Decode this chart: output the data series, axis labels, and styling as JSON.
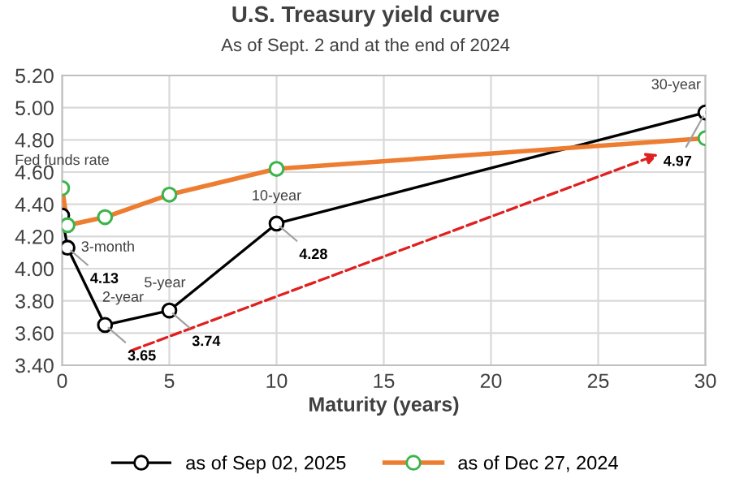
{
  "chart_data": {
    "type": "line",
    "title": "U.S. Treasury yield curve",
    "subtitle": "As of Sept. 2 and at the end of 2024",
    "xlabel": "Maturity (years)",
    "series": [
      {
        "name": "as of Sep 02, 2025",
        "color": "#000000",
        "x": [
          0,
          0.25,
          2,
          5,
          10,
          30
        ],
        "values": [
          4.33,
          4.13,
          3.65,
          3.74,
          4.28,
          4.97
        ],
        "value_labels": [
          null,
          "4.13",
          "3.65",
          "3.74",
          "4.28",
          "4.97"
        ]
      },
      {
        "name": "as of Dec 27, 2024",
        "color": "#ed7d31",
        "x": [
          0,
          0.25,
          2,
          5,
          10,
          30
        ],
        "values": [
          4.5,
          4.27,
          4.32,
          4.46,
          4.62,
          4.81
        ]
      }
    ],
    "annotations": [
      {
        "text": "Fed funds rate",
        "x": 0,
        "y": 4.5
      },
      {
        "text": "3-month",
        "x": 0.25,
        "y": 4.27
      },
      {
        "text": "2-year",
        "x": 2,
        "y": 3.65
      },
      {
        "text": "5-year",
        "x": 5,
        "y": 3.74
      },
      {
        "text": "10-year",
        "x": 10,
        "y": 4.28
      },
      {
        "text": "30-year",
        "x": 30,
        "y": 4.97
      }
    ],
    "xlim": [
      0,
      30
    ],
    "xticks": [
      0,
      5,
      10,
      15,
      20,
      25,
      30
    ],
    "ylim": [
      3.4,
      5.2
    ],
    "yticks": [
      {
        "value": 3.4,
        "label": "3.40"
      },
      {
        "value": 3.6,
        "label": "3.60"
      },
      {
        "value": 3.8,
        "label": "3.80"
      },
      {
        "value": 4.0,
        "label": "4.00"
      },
      {
        "value": 4.2,
        "label": "4.20"
      },
      {
        "value": 4.4,
        "label": "4.40"
      },
      {
        "value": 4.6,
        "label": "4.60"
      },
      {
        "value": 4.8,
        "label": "4.80"
      },
      {
        "value": 5.0,
        "label": "5.00"
      },
      {
        "value": 5.2,
        "label": "5.20"
      }
    ],
    "grid": true,
    "legend": "bottom",
    "marker": "circle",
    "line_style": "solid"
  }
}
